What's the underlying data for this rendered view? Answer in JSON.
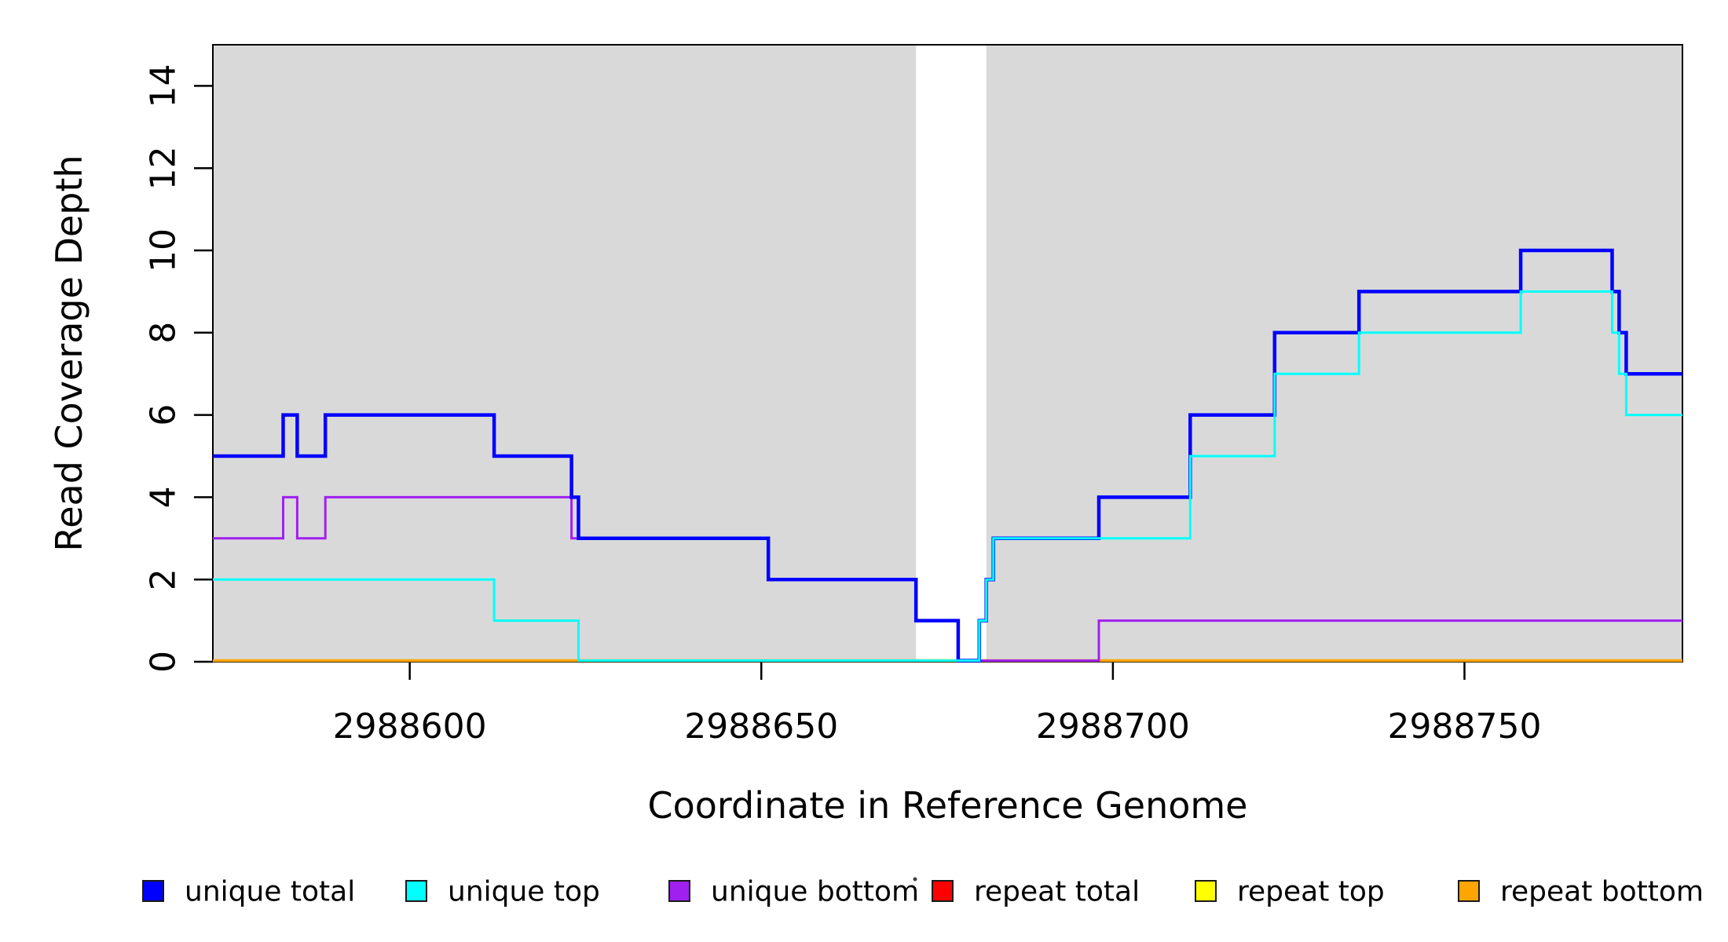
{
  "chart_data": {
    "type": "line",
    "subtype": "step",
    "title": "",
    "xlabel": "Coordinate in Reference Genome",
    "ylabel": "Read Coverage Depth",
    "xlim": [
      2988572,
      2988781
    ],
    "ylim": [
      0,
      15
    ],
    "x_ticks": [
      "2988600",
      "2988650",
      "2988700",
      "2988750"
    ],
    "x_tick_values": [
      2988600,
      2988650,
      2988700,
      2988750
    ],
    "y_ticks": [
      "0",
      "2",
      "4",
      "6",
      "8",
      "10",
      "12",
      "14"
    ],
    "y_tick_values": [
      0,
      2,
      4,
      6,
      8,
      10,
      12,
      14
    ],
    "grid": false,
    "plot_background": "#ffffff",
    "shade_color": "#d9d9d9",
    "shaded_intervals": [
      [
        2988572,
        2988672
      ],
      [
        2988682,
        2988781
      ]
    ],
    "legend_position": "bottom",
    "series": [
      {
        "name": "repeat total",
        "color": "#ff0000",
        "width": 3,
        "points": [
          [
            2988572,
            0
          ]
        ]
      },
      {
        "name": "repeat top",
        "color": "#ffff00",
        "width": 3,
        "points": [
          [
            2988572,
            0
          ]
        ]
      },
      {
        "name": "repeat bottom",
        "color": "#ffa500",
        "width": 3.5,
        "points": [
          [
            2988572,
            0
          ]
        ]
      },
      {
        "name": "unique bottom",
        "color": "#a020f0",
        "width": 3,
        "points": [
          [
            2988572,
            3
          ],
          [
            2988582,
            4
          ],
          [
            2988584,
            3
          ],
          [
            2988588,
            4
          ],
          [
            2988623,
            3
          ],
          [
            2988651,
            2
          ],
          [
            2988672,
            1
          ],
          [
            2988678,
            0
          ],
          [
            2988698,
            1
          ]
        ]
      },
      {
        "name": "unique total",
        "color": "#0000ff",
        "width": 4.5,
        "points": [
          [
            2988572,
            5
          ],
          [
            2988582,
            6
          ],
          [
            2988584,
            5
          ],
          [
            2988588,
            6
          ],
          [
            2988612,
            5
          ],
          [
            2988623,
            4
          ],
          [
            2988624,
            3
          ],
          [
            2988651,
            2
          ],
          [
            2988672,
            1
          ],
          [
            2988678,
            0
          ],
          [
            2988681,
            1
          ],
          [
            2988682,
            2
          ],
          [
            2988683,
            3
          ],
          [
            2988698,
            4
          ],
          [
            2988711,
            6
          ],
          [
            2988723,
            8
          ],
          [
            2988735,
            9
          ],
          [
            2988758,
            10
          ],
          [
            2988771,
            9
          ],
          [
            2988772,
            8
          ],
          [
            2988773,
            7
          ]
        ]
      },
      {
        "name": "unique top",
        "color": "#00ffff",
        "width": 3,
        "points": [
          [
            2988572,
            2
          ],
          [
            2988612,
            1
          ],
          [
            2988624,
            0
          ],
          [
            2988681,
            1
          ],
          [
            2988682,
            2
          ],
          [
            2988683,
            3
          ],
          [
            2988711,
            5
          ],
          [
            2988723,
            7
          ],
          [
            2988735,
            8
          ],
          [
            2988758,
            9
          ],
          [
            2988771,
            8
          ],
          [
            2988772,
            7
          ],
          [
            2988773,
            6
          ]
        ]
      }
    ],
    "legend": [
      {
        "label": "unique total",
        "color": "#0000ff"
      },
      {
        "label": "unique top",
        "color": "#00ffff"
      },
      {
        "label": "unique bottom",
        "color": "#a020f0"
      },
      {
        "label": "repeat total",
        "color": "#ff0000"
      },
      {
        "label": "repeat top",
        "color": "#ffff00"
      },
      {
        "label": "repeat bottom",
        "color": "#ffa500"
      }
    ]
  }
}
